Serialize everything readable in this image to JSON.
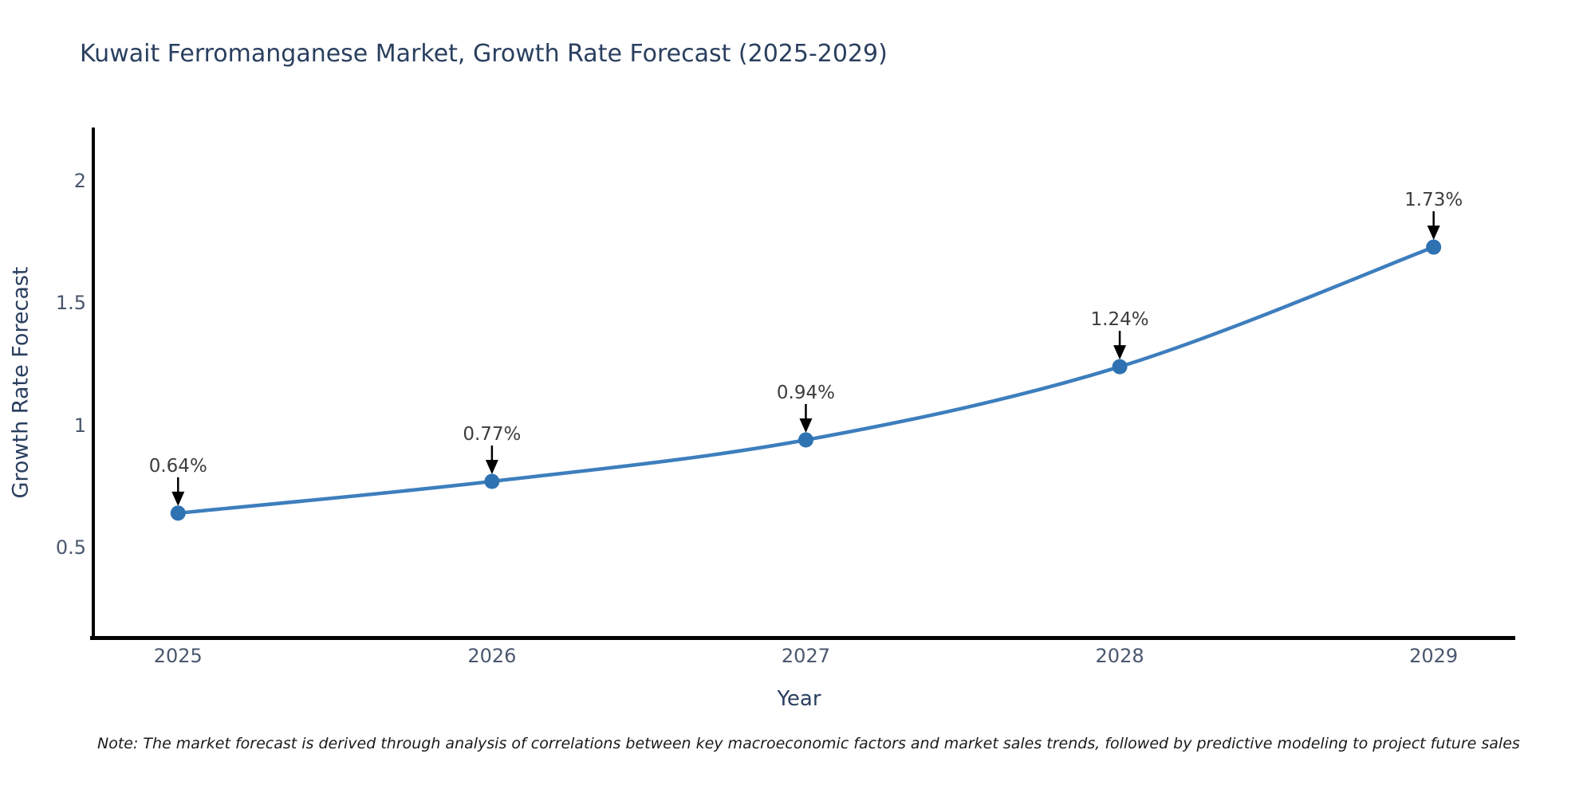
{
  "chart": {
    "title": "Kuwait Ferromanganese Market, Growth Rate Forecast (2025-2029)",
    "xlabel": "Year",
    "ylabel": "Growth Rate Forecast",
    "note": "Note: The market forecast is derived through analysis of correlations between key macroeconomic factors and market sales trends, followed by predictive modeling to project future sales",
    "colors": {
      "line": "#3d7ebd",
      "marker": "#2f72b2",
      "axis_spine": "#000000",
      "title_text": "#2a3f5f",
      "tick_text": "#4a576e",
      "annotation_text": "#3d3d3d",
      "arrow": "#000000",
      "background": "#ffffff"
    }
  },
  "chart_data": {
    "type": "line",
    "title": "Kuwait Ferromanganese Market, Growth Rate Forecast (2025-2029)",
    "xlabel": "Year",
    "ylabel": "Growth Rate Forecast",
    "x": [
      2025,
      2026,
      2027,
      2028,
      2029
    ],
    "series": [
      {
        "name": "Growth Rate Forecast",
        "values": [
          0.64,
          0.77,
          0.94,
          1.24,
          1.73
        ]
      }
    ],
    "point_labels": [
      "0.64%",
      "0.77%",
      "0.94%",
      "1.24%",
      "1.73%"
    ],
    "xticks": [
      "2025",
      "2026",
      "2027",
      "2028",
      "2029"
    ],
    "xtick_values": [
      2025,
      2026,
      2027,
      2028,
      2029
    ],
    "yticks": [
      "0.5",
      "1",
      "1.5",
      "2"
    ],
    "ytick_values": [
      0.5,
      1,
      1.5,
      2
    ],
    "xlim": [
      2024.73,
      2029.26
    ],
    "ylim": [
      0.13,
      2.22
    ],
    "grid": false,
    "legend": false,
    "line_shape": "spline",
    "annotation_style": "value label with down arrow onto each point"
  }
}
